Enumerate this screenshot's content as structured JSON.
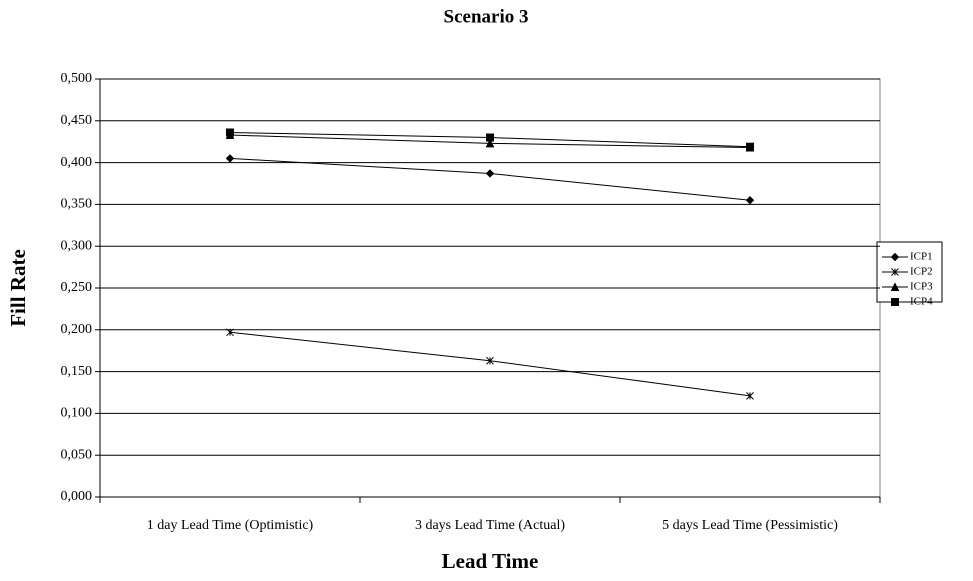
{
  "chart_data": {
    "type": "line",
    "title": "Scenario 3",
    "x_label": "Lead Time",
    "y_label": "Fill Rate",
    "categories": [
      "1 day Lead Time (Optimistic)",
      "3 days Lead Time (Actual)",
      "5 days Lead Time (Pessimistic)"
    ],
    "series": [
      {
        "name": "ICP1",
        "color": "#000000",
        "marker": "diamond",
        "values": [
          0.405,
          0.387,
          0.355
        ]
      },
      {
        "name": "ICP2",
        "color": "#000000",
        "marker": "star",
        "values": [
          0.197,
          0.163,
          0.121
        ]
      },
      {
        "name": "ICP3",
        "color": "#000000",
        "marker": "triangle",
        "values": [
          0.433,
          0.423,
          0.418
        ]
      },
      {
        "name": "ICP4",
        "color": "#000000",
        "marker": "square",
        "values": [
          0.436,
          0.43,
          0.419
        ]
      }
    ],
    "ylim": [
      0,
      0.5
    ],
    "yticks": [
      {
        "value": 0,
        "label": "0,000"
      },
      {
        "value": 0.05,
        "label": "0,050"
      },
      {
        "value": 0.1,
        "label": "0,100"
      },
      {
        "value": 0.15,
        "label": "0,150"
      },
      {
        "value": 0.2,
        "label": "0,200"
      },
      {
        "value": 0.25,
        "label": "0,250"
      },
      {
        "value": 0.3,
        "label": "0,300"
      },
      {
        "value": 0.35,
        "label": "0,350"
      },
      {
        "value": 0.4,
        "label": "0,400"
      },
      {
        "value": 0.45,
        "label": "0,450"
      },
      {
        "value": 0.5,
        "label": "0,500"
      }
    ],
    "grid": true,
    "legend": "right"
  }
}
